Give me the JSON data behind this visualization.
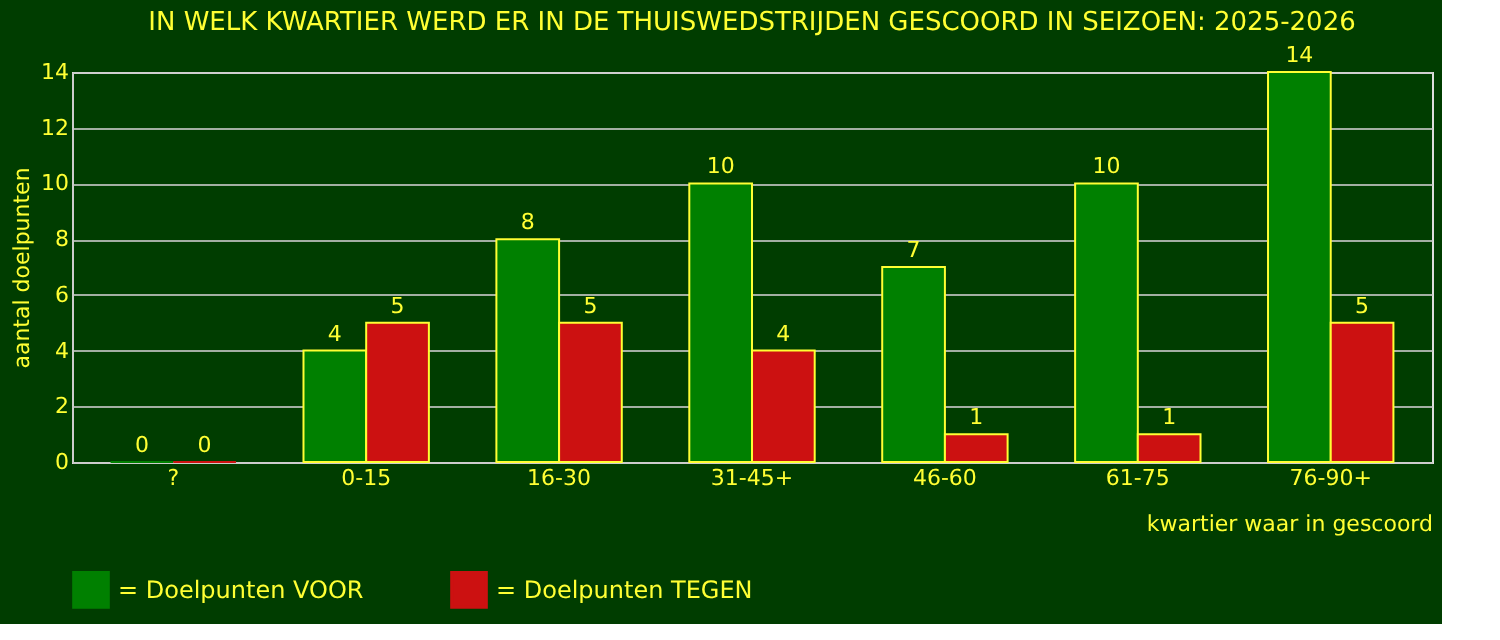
{
  "chart_data": {
    "type": "bar",
    "title": "IN WELK KWARTIER WERD ER IN DE THUISWEDSTRIJDEN GESCOORD IN SEIZOEN: 2025-2026",
    "xlabel": "kwartier waar in gescoord",
    "ylabel": "aantal doelpunten",
    "categories": [
      "?",
      "0-15",
      "16-30",
      "31-45+",
      "46-60",
      "61-75",
      "76-90+"
    ],
    "series": [
      {
        "name": "= Doelpunten VOOR",
        "color": "#008000",
        "values": [
          0,
          4,
          8,
          10,
          7,
          10,
          14
        ]
      },
      {
        "name": "= Doelpunten TEGEN",
        "color": "#cc1111",
        "values": [
          0,
          5,
          5,
          4,
          1,
          1,
          5
        ]
      }
    ],
    "ylim": [
      0,
      14
    ],
    "yticks": [
      0,
      2,
      4,
      6,
      8,
      10,
      12,
      14
    ],
    "grid": "y",
    "legend": "bottom",
    "data_labels": true
  }
}
